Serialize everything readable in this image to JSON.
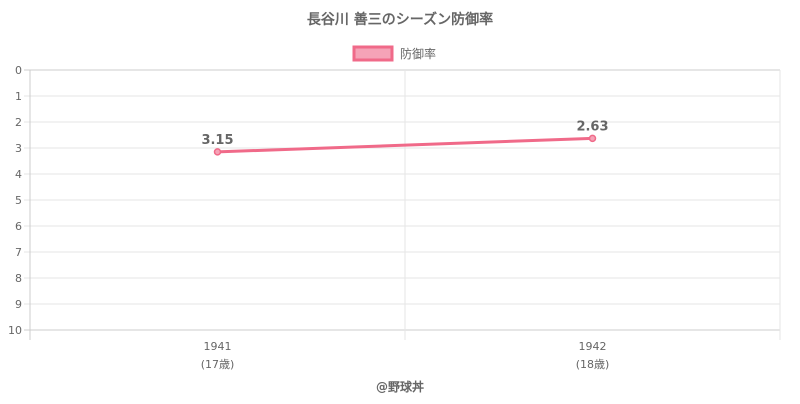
{
  "chart_data": {
    "type": "line",
    "title": "長谷川 善三のシーズン防御率",
    "legend": {
      "placement": "top",
      "entries": [
        "防御率"
      ]
    },
    "x_ticks": [
      {
        "year": "1941",
        "age": "(17歳)"
      },
      {
        "year": "1942",
        "age": "(18歳)"
      }
    ],
    "y_axis": {
      "min": 0,
      "max": 10,
      "reversed": true,
      "ticks": [
        "0",
        "1",
        "2",
        "3",
        "4",
        "5",
        "6",
        "7",
        "8",
        "9",
        "10"
      ]
    },
    "series": [
      {
        "name": "防御率",
        "values": [
          3.15,
          2.63
        ],
        "labels": [
          "3.15",
          "2.63"
        ]
      }
    ],
    "grid": true,
    "colors": {
      "line": "#f06a89",
      "fill": "#f5a3b7",
      "text": "#666666",
      "grid": "#e6e6e6"
    }
  },
  "footer": {
    "credit": "@野球丼"
  }
}
